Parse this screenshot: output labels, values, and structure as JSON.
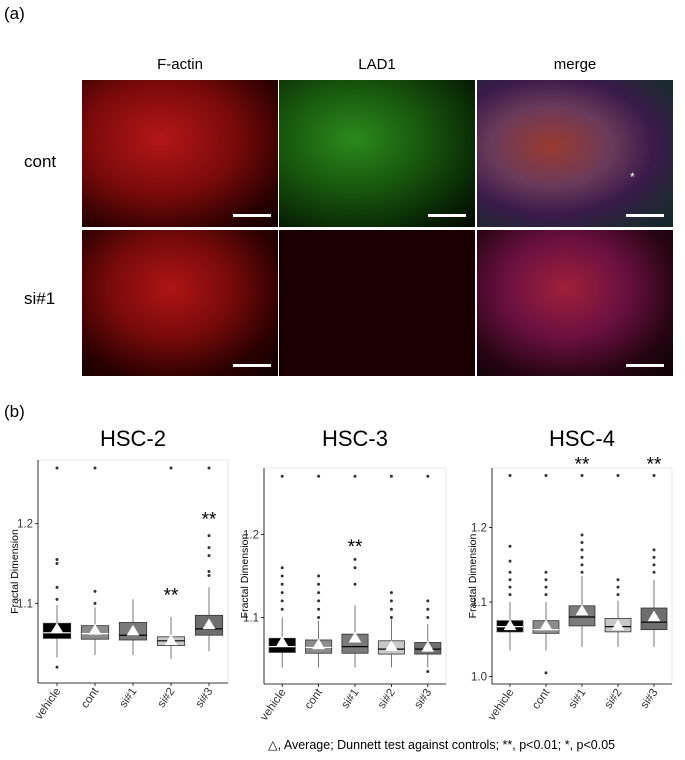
{
  "panel_a": {
    "label": "(a)",
    "columns": [
      "F-actin",
      "LAD1",
      "merge"
    ],
    "rows": [
      "cont",
      "si#1"
    ],
    "markers": {
      "asterisk": "*"
    }
  },
  "panel_b": {
    "label": "(b)",
    "legend": "△, Average; Dunnett test against controls; **, p<0.01; *, p<0.05"
  },
  "chart_data": [
    {
      "type": "box",
      "title": "HSC-2",
      "ylabel": "Fractal Dimension",
      "ylim": [
        1.0,
        1.28
      ],
      "yticks": [
        "1.1",
        "1.2"
      ],
      "ytick_values": [
        1.1,
        1.2
      ],
      "categories": [
        "vehicle",
        "cont",
        "si#1",
        "si#2",
        "si#3"
      ],
      "fills": [
        "#000000",
        "#8c8c8c",
        "#7a7a7a",
        "#c8c8c8",
        "#6e6e6e"
      ],
      "median_color": [
        "#ffffff",
        "#ffffff",
        "#000000",
        "#000000",
        "#000000"
      ],
      "boxes": [
        {
          "q1": 1.056,
          "median": 1.063,
          "q3": 1.075,
          "lo": 1.032,
          "hi": 1.098,
          "mean": 1.068,
          "outliers": [
            1.02,
            1.105,
            1.12,
            1.15,
            1.155,
            1.27
          ]
        },
        {
          "q1": 1.055,
          "median": 1.062,
          "q3": 1.072,
          "lo": 1.035,
          "hi": 1.095,
          "mean": 1.066,
          "outliers": [
            1.1,
            1.115,
            1.27
          ]
        },
        {
          "q1": 1.054,
          "median": 1.06,
          "q3": 1.076,
          "lo": 1.035,
          "hi": 1.105,
          "mean": 1.065,
          "outliers": []
        },
        {
          "q1": 1.047,
          "median": 1.053,
          "q3": 1.058,
          "lo": 1.03,
          "hi": 1.083,
          "mean": 1.053,
          "outliers": [
            1.27
          ]
        },
        {
          "q1": 1.06,
          "median": 1.068,
          "q3": 1.085,
          "lo": 1.04,
          "hi": 1.12,
          "mean": 1.073,
          "outliers": [
            1.135,
            1.14,
            1.16,
            1.17,
            1.185,
            1.27
          ]
        }
      ],
      "significance": [
        "",
        "",
        "",
        "**",
        "**"
      ],
      "sig_values": [
        null,
        null,
        null,
        1.11,
        1.205
      ]
    },
    {
      "type": "box",
      "title": "HSC-3",
      "ylabel": "Fractal Dimension",
      "ylim": [
        1.02,
        1.28
      ],
      "yticks": [
        "1.1",
        "1.2"
      ],
      "ytick_values": [
        1.1,
        1.2
      ],
      "categories": [
        "vehicle",
        "cont",
        "si#1",
        "si#2",
        "si#3"
      ],
      "fills": [
        "#000000",
        "#8c8c8c",
        "#7a7a7a",
        "#c8c8c8",
        "#6e6e6e"
      ],
      "median_color": [
        "#ffffff",
        "#ffffff",
        "#000000",
        "#000000",
        "#000000"
      ],
      "boxes": [
        {
          "q1": 1.058,
          "median": 1.065,
          "q3": 1.075,
          "lo": 1.04,
          "hi": 1.1,
          "mean": 1.07,
          "outliers": [
            1.11,
            1.12,
            1.13,
            1.14,
            1.15,
            1.16,
            1.27
          ]
        },
        {
          "q1": 1.057,
          "median": 1.064,
          "q3": 1.073,
          "lo": 1.04,
          "hi": 1.096,
          "mean": 1.067,
          "outliers": [
            1.1,
            1.11,
            1.12,
            1.13,
            1.14,
            1.15,
            1.27
          ]
        },
        {
          "q1": 1.057,
          "median": 1.065,
          "q3": 1.08,
          "lo": 1.04,
          "hi": 1.115,
          "mean": 1.075,
          "outliers": [
            1.14,
            1.16,
            1.17,
            1.27
          ]
        },
        {
          "q1": 1.056,
          "median": 1.062,
          "q3": 1.072,
          "lo": 1.04,
          "hi": 1.098,
          "mean": 1.065,
          "outliers": [
            1.1,
            1.11,
            1.12,
            1.13,
            1.27
          ]
        },
        {
          "q1": 1.056,
          "median": 1.062,
          "q3": 1.07,
          "lo": 1.04,
          "hi": 1.092,
          "mean": 1.064,
          "outliers": [
            1.035,
            1.1,
            1.11,
            1.12,
            1.27
          ]
        }
      ],
      "significance": [
        "",
        "",
        "**",
        "",
        ""
      ],
      "sig_values": [
        null,
        null,
        1.185,
        null,
        null
      ]
    },
    {
      "type": "box",
      "title": "HSC-4",
      "ylabel": "Fractal Dimension",
      "ylim": [
        0.99,
        1.28
      ],
      "yticks": [
        "1.0",
        "1.1",
        "1.2"
      ],
      "ytick_values": [
        1.0,
        1.1,
        1.2
      ],
      "categories": [
        "vehicle",
        "cont",
        "si#1",
        "si#2",
        "si#3"
      ],
      "fills": [
        "#000000",
        "#8c8c8c",
        "#7a7a7a",
        "#c8c8c8",
        "#6e6e6e"
      ],
      "median_color": [
        "#ffffff",
        "#ffffff",
        "#000000",
        "#000000",
        "#000000"
      ],
      "boxes": [
        {
          "q1": 1.06,
          "median": 1.067,
          "q3": 1.075,
          "lo": 1.035,
          "hi": 1.1,
          "mean": 1.068,
          "outliers": [
            1.11,
            1.12,
            1.13,
            1.14,
            1.155,
            1.175,
            1.27
          ]
        },
        {
          "q1": 1.058,
          "median": 1.063,
          "q3": 1.075,
          "lo": 1.035,
          "hi": 1.1,
          "mean": 1.068,
          "outliers": [
            1.005,
            1.11,
            1.12,
            1.13,
            1.14,
            1.27
          ]
        },
        {
          "q1": 1.068,
          "median": 1.08,
          "q3": 1.095,
          "lo": 1.04,
          "hi": 1.135,
          "mean": 1.088,
          "outliers": [
            1.14,
            1.15,
            1.16,
            1.17,
            1.18,
            1.19,
            1.27
          ]
        },
        {
          "q1": 1.06,
          "median": 1.067,
          "q3": 1.078,
          "lo": 1.04,
          "hi": 1.102,
          "mean": 1.068,
          "outliers": [
            1.11,
            1.12,
            1.13,
            1.27
          ]
        },
        {
          "q1": 1.063,
          "median": 1.073,
          "q3": 1.092,
          "lo": 1.04,
          "hi": 1.13,
          "mean": 1.08,
          "outliers": [
            1.14,
            1.15,
            1.16,
            1.17,
            1.27
          ]
        }
      ],
      "significance": [
        "",
        "",
        "**",
        "",
        "**"
      ],
      "sig_values": [
        null,
        null,
        1.285,
        null,
        1.285
      ]
    }
  ]
}
